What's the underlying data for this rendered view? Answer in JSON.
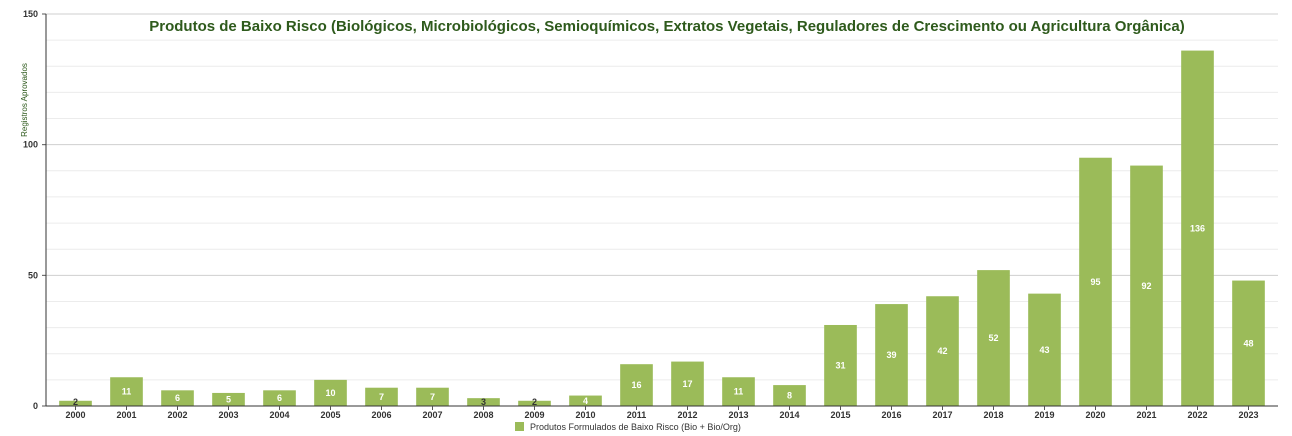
{
  "chart_data": {
    "type": "bar",
    "title": "Produtos de Baixo Risco (Biológicos, Microbiológicos, Semioquímicos, Extratos Vegetais, Reguladores de Crescimento ou Agricultura Orgânica)",
    "xlabel": "",
    "ylabel": "Registros Aprovados",
    "ylim": [
      0,
      150
    ],
    "yticks": [
      "0",
      "50",
      "100",
      "150"
    ],
    "categories": [
      "2000",
      "2001",
      "2002",
      "2003",
      "2004",
      "2005",
      "2006",
      "2007",
      "2008",
      "2009",
      "2010",
      "2011",
      "2012",
      "2013",
      "2014",
      "2015",
      "2016",
      "2017",
      "2018",
      "2019",
      "2020",
      "2021",
      "2022",
      "2023"
    ],
    "series": [
      {
        "name": "Produtos Formulados de Baixo Risco (Bio + Bio/Org)",
        "values": [
          2,
          11,
          6,
          5,
          6,
          10,
          7,
          7,
          3,
          2,
          4,
          16,
          17,
          11,
          8,
          31,
          39,
          42,
          52,
          43,
          95,
          92,
          136,
          48
        ],
        "color": "#9bbb59"
      }
    ],
    "grid": true,
    "legend_position": "bottom"
  }
}
